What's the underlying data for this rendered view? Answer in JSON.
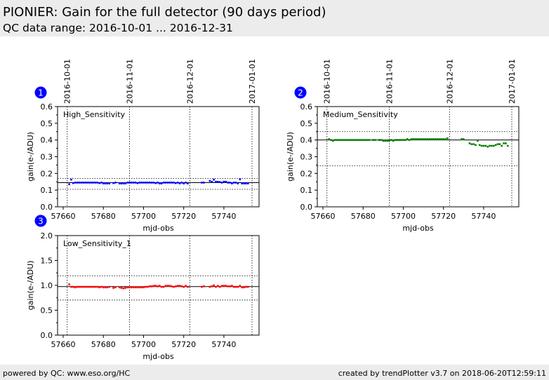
{
  "header": {
    "title": "PIONIER: Gain for the full detector (90 days period)",
    "subtitle": "QC data range: 2016-10-01 ... 2016-12-31"
  },
  "footer": {
    "left": "powered by QC: www.eso.org/HC",
    "right": "created by trendPlotter v3.7 on 2018-06-20T12:59:11"
  },
  "chart_data": [
    {
      "type": "scatter",
      "badge": "1",
      "title": "High_Sensitivity",
      "xlabel": "mjd-obs",
      "ylabel": "gain(e-/ADU)",
      "xlim": [
        57657.2,
        57757.5
      ],
      "ylim": [
        0,
        0.6
      ],
      "yticks": [
        "0.0",
        "0.1",
        "0.2",
        "0.3",
        "0.4",
        "0.5",
        "0.6"
      ],
      "ytick_values": [
        0,
        0.1,
        0.2,
        0.3,
        0.4,
        0.5,
        0.6
      ],
      "xticks": [
        57660,
        57680,
        57700,
        57720,
        57740
      ],
      "color": "#0000ff",
      "reference": 0.145,
      "limits": [
        0.105,
        0.17
      ],
      "date_lines": [
        {
          "label": "2016-10-01",
          "mjd": 57662
        },
        {
          "label": "2016-11-01",
          "mjd": 57693
        },
        {
          "label": "2016-12-01",
          "mjd": 57723
        },
        {
          "label": "2017-01-01",
          "mjd": 57754
        }
      ],
      "x": [
        57663,
        57664,
        57665,
        57666,
        57667,
        57668,
        57669,
        57670,
        57671,
        57672,
        57673,
        57674,
        57675,
        57676,
        57677,
        57678,
        57679,
        57680,
        57681,
        57682,
        57683,
        57685,
        57686,
        57688,
        57689,
        57690,
        57691,
        57692,
        57693,
        57694,
        57695,
        57696,
        57697,
        57698,
        57699,
        57700,
        57701,
        57702,
        57703,
        57704,
        57705,
        57706,
        57707,
        57708,
        57709,
        57710,
        57711,
        57712,
        57713,
        57714,
        57715,
        57716,
        57717,
        57718,
        57719,
        57720,
        57721,
        57722,
        57729,
        57730,
        57733,
        57734,
        57735,
        57736,
        57737,
        57738,
        57739,
        57740,
        57741,
        57742,
        57743,
        57744,
        57745,
        57746,
        57747,
        57748,
        57749,
        57750,
        57751,
        57752
      ],
      "y": [
        0.135,
        0.163,
        0.142,
        0.145,
        0.145,
        0.145,
        0.145,
        0.145,
        0.145,
        0.145,
        0.145,
        0.145,
        0.145,
        0.145,
        0.145,
        0.142,
        0.145,
        0.14,
        0.14,
        0.14,
        0.14,
        0.142,
        0.145,
        0.14,
        0.14,
        0.14,
        0.14,
        0.145,
        0.145,
        0.145,
        0.145,
        0.145,
        0.142,
        0.145,
        0.145,
        0.145,
        0.145,
        0.145,
        0.145,
        0.145,
        0.145,
        0.142,
        0.145,
        0.14,
        0.14,
        0.145,
        0.145,
        0.145,
        0.145,
        0.145,
        0.145,
        0.142,
        0.145,
        0.14,
        0.145,
        0.14,
        0.145,
        0.14,
        0.145,
        0.145,
        0.155,
        0.15,
        0.163,
        0.15,
        0.15,
        0.148,
        0.145,
        0.15,
        0.15,
        0.145,
        0.145,
        0.14,
        0.145,
        0.145,
        0.14,
        0.165,
        0.14,
        0.14,
        0.14,
        0.14
      ]
    },
    {
      "type": "scatter",
      "badge": "2",
      "title": "Medium_Sensitivity",
      "xlabel": "mjd-obs",
      "ylabel": "gain(e-/ADU)",
      "xlim": [
        57657.2,
        57757.5
      ],
      "ylim": [
        0,
        0.6
      ],
      "yticks": [
        "0.0",
        "0.1",
        "0.2",
        "0.3",
        "0.4",
        "0.5",
        "0.6"
      ],
      "ytick_values": [
        0,
        0.1,
        0.2,
        0.3,
        0.4,
        0.5,
        0.6
      ],
      "xticks": [
        57660,
        57680,
        57700,
        57720,
        57740
      ],
      "color": "#008000",
      "reference": 0.4,
      "limits": [
        0.245,
        0.45
      ],
      "date_lines": [
        {
          "label": "2016-10-01",
          "mjd": 57662
        },
        {
          "label": "2016-11-01",
          "mjd": 57693
        },
        {
          "label": "2016-12-01",
          "mjd": 57723
        },
        {
          "label": "2017-01-01",
          "mjd": 57754
        }
      ],
      "x": [
        57663,
        57664,
        57665,
        57666,
        57667,
        57668,
        57669,
        57670,
        57671,
        57672,
        57673,
        57674,
        57675,
        57676,
        57677,
        57678,
        57679,
        57680,
        57681,
        57682,
        57683,
        57685,
        57686,
        57688,
        57689,
        57690,
        57691,
        57692,
        57693,
        57694,
        57695,
        57696,
        57697,
        57698,
        57699,
        57700,
        57701,
        57702,
        57703,
        57704,
        57705,
        57706,
        57707,
        57708,
        57709,
        57710,
        57711,
        57712,
        57713,
        57714,
        57715,
        57716,
        57717,
        57718,
        57719,
        57720,
        57721,
        57722,
        57729,
        57730,
        57733,
        57734,
        57735,
        57736,
        57737,
        57738,
        57739,
        57740,
        57741,
        57742,
        57743,
        57744,
        57745,
        57746,
        57747,
        57748,
        57749,
        57750,
        57751,
        57752
      ],
      "y": [
        0.405,
        0.4,
        0.395,
        0.4,
        0.4,
        0.4,
        0.4,
        0.4,
        0.4,
        0.4,
        0.4,
        0.4,
        0.4,
        0.4,
        0.4,
        0.4,
        0.4,
        0.4,
        0.4,
        0.4,
        0.4,
        0.4,
        0.4,
        0.4,
        0.4,
        0.395,
        0.395,
        0.395,
        0.395,
        0.4,
        0.395,
        0.4,
        0.4,
        0.4,
        0.4,
        0.4,
        0.4,
        0.405,
        0.4,
        0.405,
        0.405,
        0.405,
        0.405,
        0.405,
        0.405,
        0.405,
        0.405,
        0.405,
        0.405,
        0.405,
        0.405,
        0.405,
        0.405,
        0.405,
        0.405,
        0.405,
        0.405,
        0.41,
        0.405,
        0.405,
        0.38,
        0.375,
        0.375,
        0.37,
        0.395,
        0.37,
        0.365,
        0.365,
        0.365,
        0.36,
        0.365,
        0.365,
        0.365,
        0.37,
        0.375,
        0.375,
        0.365,
        0.38,
        0.38,
        0.365
      ]
    },
    {
      "type": "scatter",
      "badge": "3",
      "title": "Low_Sensitivity_1",
      "xlabel": "mjd-obs",
      "ylabel": "gain(e-/ADU)",
      "xlim": [
        57657.2,
        57757.5
      ],
      "ylim": [
        0,
        2
      ],
      "yticks": [
        "0.0",
        "0.5",
        "1.0",
        "1.5",
        "2.0"
      ],
      "ytick_values": [
        0,
        0.5,
        1,
        1.5,
        2
      ],
      "xticks": [
        57660,
        57680,
        57700,
        57720,
        57740
      ],
      "color": "#ff0000",
      "reference": 0.975,
      "limits": [
        0.705,
        1.19
      ],
      "date_lines": [
        {
          "label": "2016-10-01",
          "mjd": 57662
        },
        {
          "label": "2016-11-01",
          "mjd": 57693
        },
        {
          "label": "2016-12-01",
          "mjd": 57723
        },
        {
          "label": "2017-01-01",
          "mjd": 57754
        }
      ],
      "x": [
        57663,
        57664,
        57665,
        57666,
        57667,
        57668,
        57669,
        57670,
        57671,
        57672,
        57673,
        57674,
        57675,
        57676,
        57677,
        57678,
        57679,
        57680,
        57681,
        57682,
        57683,
        57685,
        57686,
        57688,
        57689,
        57690,
        57691,
        57692,
        57693,
        57694,
        57695,
        57696,
        57697,
        57698,
        57699,
        57700,
        57701,
        57702,
        57703,
        57704,
        57705,
        57706,
        57707,
        57708,
        57709,
        57710,
        57711,
        57712,
        57713,
        57714,
        57715,
        57716,
        57717,
        57718,
        57719,
        57720,
        57721,
        57722,
        57729,
        57730,
        57733,
        57734,
        57735,
        57736,
        57737,
        57738,
        57739,
        57740,
        57741,
        57742,
        57743,
        57744,
        57745,
        57746,
        57747,
        57748,
        57749,
        57750,
        57751,
        57752
      ],
      "y": [
        1.02,
        0.97,
        0.97,
        0.96,
        0.97,
        0.97,
        0.97,
        0.97,
        0.97,
        0.97,
        0.97,
        0.97,
        0.97,
        0.97,
        0.97,
        0.96,
        0.97,
        0.96,
        0.96,
        0.96,
        0.97,
        0.95,
        0.96,
        0.96,
        0.95,
        0.94,
        0.95,
        0.96,
        0.96,
        0.96,
        0.96,
        0.96,
        0.96,
        0.96,
        0.96,
        0.96,
        0.97,
        0.97,
        0.98,
        0.98,
        0.99,
        0.99,
        0.98,
        0.99,
        0.97,
        0.97,
        0.99,
        0.99,
        0.99,
        0.98,
        0.97,
        0.98,
        0.99,
        0.99,
        0.98,
        0.97,
        0.99,
        0.97,
        0.97,
        0.98,
        0.97,
        0.98,
        1.0,
        0.97,
        0.99,
        0.97,
        0.99,
        0.99,
        0.99,
        0.98,
        0.98,
        0.99,
        0.97,
        0.97,
        0.97,
        0.99,
        0.96,
        0.96,
        0.97,
        0.97
      ]
    }
  ]
}
